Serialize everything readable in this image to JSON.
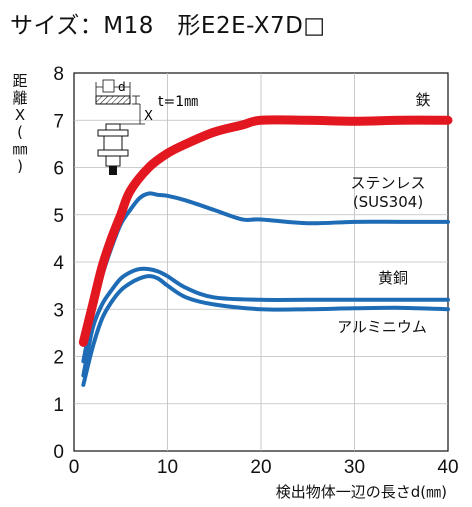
{
  "title": "サイズ：M18　形E2E-X7D□",
  "chart_data": {
    "type": "line",
    "xlabel": "検出物体一辺の長さd(㎜)",
    "ylabel": [
      "距",
      "離",
      "X",
      "(",
      "㎜",
      ")"
    ],
    "xlim": [
      0,
      40
    ],
    "ylim": [
      0,
      8
    ],
    "xticks": [
      "0",
      "10",
      "20",
      "30",
      "40"
    ],
    "yticks": [
      "0",
      "1",
      "2",
      "3",
      "4",
      "5",
      "6",
      "7",
      "8"
    ],
    "grid": true,
    "inset": {
      "d_label": "d",
      "x_label": "X",
      "t_label": "t=1㎜"
    },
    "series": [
      {
        "name": "鉄",
        "color": "#e3171f",
        "x": [
          1,
          2,
          3,
          4,
          5,
          6,
          8,
          10,
          12,
          15,
          18,
          20,
          25,
          30,
          35,
          40
        ],
        "y": [
          2.3,
          3.1,
          3.9,
          4.5,
          5.0,
          5.5,
          6.0,
          6.3,
          6.5,
          6.75,
          6.9,
          7.0,
          7.0,
          6.98,
          7.0,
          7.0
        ]
      },
      {
        "name": "ステンレス",
        "name2": "(SUS304)",
        "color": "#1e6cb6",
        "x": [
          1,
          2,
          3,
          4,
          5,
          6,
          7,
          8,
          9,
          10,
          12,
          15,
          18,
          20,
          25,
          30,
          35,
          40
        ],
        "y": [
          1.9,
          2.9,
          3.7,
          4.3,
          4.8,
          5.1,
          5.35,
          5.45,
          5.42,
          5.4,
          5.3,
          5.1,
          4.9,
          4.9,
          4.82,
          4.85,
          4.85,
          4.85
        ]
      },
      {
        "name": "黄銅",
        "color": "#1e6cb6",
        "x": [
          1,
          2,
          3,
          4,
          5,
          6,
          7,
          8,
          9,
          10,
          12,
          15,
          20,
          25,
          30,
          35,
          40
        ],
        "y": [
          1.6,
          2.6,
          3.1,
          3.4,
          3.65,
          3.78,
          3.85,
          3.85,
          3.8,
          3.7,
          3.45,
          3.25,
          3.2,
          3.2,
          3.2,
          3.2,
          3.2
        ]
      },
      {
        "name": "アルミニウム",
        "color": "#1e6cb6",
        "x": [
          1,
          2,
          3,
          4,
          5,
          6,
          7,
          8,
          9,
          10,
          12,
          15,
          20,
          25,
          30,
          35,
          40
        ],
        "y": [
          1.4,
          2.2,
          2.8,
          3.15,
          3.4,
          3.55,
          3.65,
          3.7,
          3.65,
          3.5,
          3.25,
          3.1,
          3.0,
          3.0,
          3.02,
          3.03,
          3.0
        ]
      }
    ]
  }
}
